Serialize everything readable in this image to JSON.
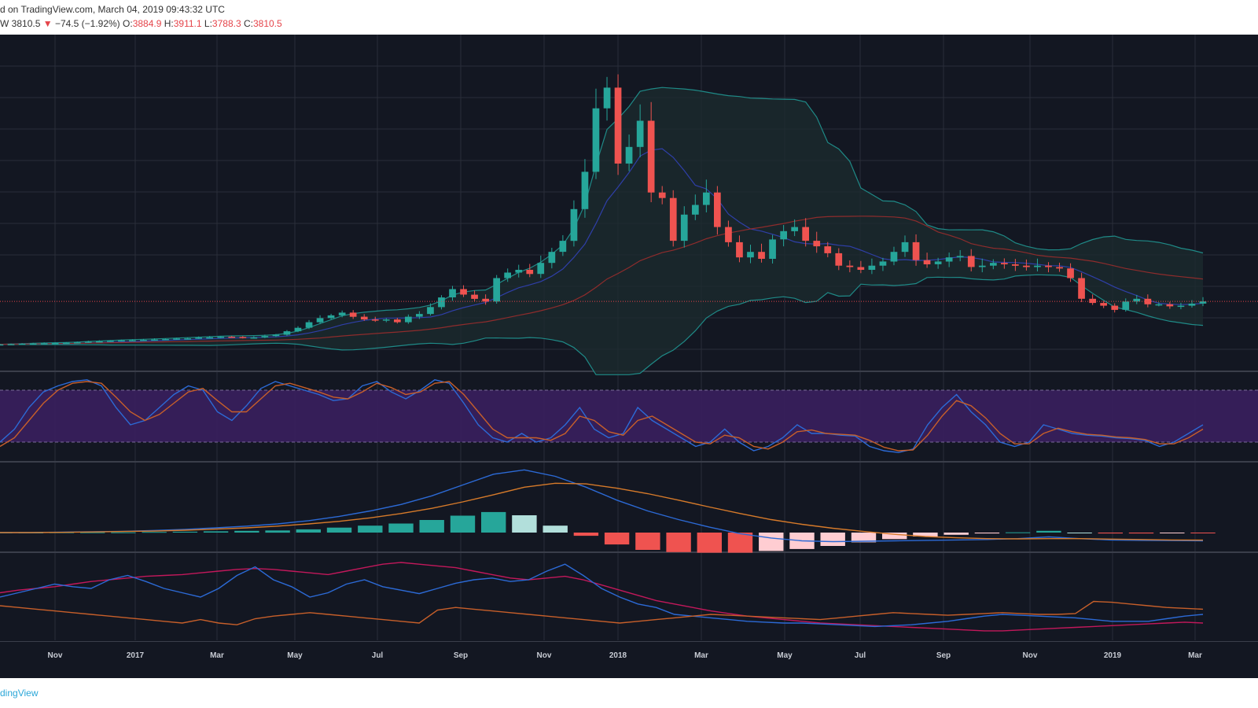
{
  "header": {
    "line1": "d on TradingView.com, March 04, 2019 09:43:32 UTC",
    "symbol_tail": "W",
    "last": "3810.5",
    "down_arrow": "▼",
    "change": "−74.5 (−1.92%)",
    "o_label": "O:",
    "o_value": "3884.9",
    "h_label": "H:",
    "h_value": "3911.1",
    "l_label": "L:",
    "l_value": "3788.3",
    "c_label": "C:",
    "c_value": "3810.5"
  },
  "footer": {
    "brand": "dingView"
  },
  "colors": {
    "background": "#131722",
    "grid": "#2a2e39",
    "up": "#26a69a",
    "down": "#ef5350",
    "bb_band": "#1f8a87",
    "bb_fill": "#1b2a2e",
    "ma_blue": "#2f3fa8",
    "ma_red": "#8e2c2c",
    "stoch_k": "#2c6ad6",
    "stoch_d": "#c75f2a",
    "stoch_band": "#3a1f5e",
    "macd": "#2c6ad6",
    "signal": "#d67a2a",
    "hist_up_strong": "#26a69a",
    "hist_up_weak": "#b2dfdb",
    "hist_dn_strong": "#ef5350",
    "hist_dn_weak": "#ffcdd2",
    "dmi_plus": "#2c6ad6",
    "dmi_minus": "#c2185b",
    "adx": "#c75f2a",
    "price_line": "#e5444a"
  },
  "chart_data": {
    "type": "candlestick",
    "timeframe": "weekly",
    "x_labels": [
      "Nov",
      "2017",
      "Mar",
      "May",
      "Jul",
      "Sep",
      "Nov",
      "2018",
      "Mar",
      "May",
      "Jul",
      "Sep",
      "Nov",
      "2019",
      "Mar"
    ],
    "ylim": [
      0,
      22000
    ],
    "last_price": 3810.5,
    "close": [
      700,
      720,
      740,
      760,
      780,
      800,
      820,
      850,
      900,
      920,
      960,
      990,
      1000,
      1020,
      1050,
      1080,
      1120,
      1130,
      1190,
      1210,
      1250,
      1230,
      1180,
      1200,
      1300,
      1400,
      1650,
      1900,
      2300,
      2600,
      2800,
      3000,
      2700,
      2500,
      2450,
      2500,
      2300,
      2700,
      2900,
      3400,
      4100,
      4700,
      4300,
      4000,
      3800,
      5500,
      5900,
      6100,
      5800,
      6600,
      7400,
      8200,
      10500,
      13200,
      17800,
      19300,
      13800,
      15000,
      16900,
      11700,
      11300,
      8200,
      10100,
      10800,
      11700,
      9200,
      8100,
      7000,
      7400,
      6900,
      8300,
      8900,
      9200,
      8200,
      7800,
      7300,
      6400,
      6300,
      6100,
      6400,
      6700,
      7400,
      8100,
      6800,
      6500,
      6700,
      7000,
      7100,
      6300,
      6400,
      6600,
      6500,
      6400,
      6300,
      6400,
      6300,
      6200,
      5500,
      4000,
      3700,
      3500,
      3200,
      3800,
      4000,
      3600,
      3600,
      3450,
      3500,
      3650,
      3810.5
    ],
    "stoch_k": [
      20,
      35,
      60,
      78,
      85,
      90,
      92,
      85,
      60,
      40,
      45,
      60,
      75,
      85,
      80,
      55,
      45,
      62,
      82,
      90,
      85,
      80,
      75,
      68,
      70,
      85,
      90,
      78,
      70,
      80,
      92,
      88,
      65,
      40,
      25,
      20,
      30,
      20,
      25,
      40,
      60,
      35,
      25,
      30,
      60,
      45,
      35,
      25,
      15,
      20,
      35,
      20,
      10,
      15,
      25,
      40,
      30,
      30,
      28,
      27,
      15,
      10,
      8,
      12,
      40,
      60,
      75,
      55,
      40,
      20,
      15,
      20,
      40,
      35,
      30,
      28,
      27,
      25,
      24,
      22,
      15,
      20,
      30,
      40
    ],
    "stoch_d": [
      15,
      25,
      45,
      65,
      80,
      88,
      90,
      88,
      72,
      55,
      45,
      52,
      65,
      78,
      82,
      68,
      55,
      55,
      70,
      85,
      88,
      83,
      78,
      72,
      70,
      78,
      88,
      83,
      75,
      78,
      88,
      90,
      75,
      55,
      35,
      25,
      25,
      25,
      22,
      30,
      50,
      45,
      32,
      28,
      45,
      50,
      40,
      30,
      20,
      18,
      28,
      25,
      15,
      12,
      20,
      32,
      34,
      30,
      29,
      28,
      22,
      14,
      10,
      11,
      28,
      50,
      68,
      62,
      48,
      30,
      18,
      18,
      30,
      36,
      32,
      29,
      28,
      26,
      25,
      23,
      18,
      18,
      25,
      35
    ],
    "macd": [
      0,
      0,
      2,
      4,
      6,
      10,
      15,
      22,
      30,
      40,
      55,
      75,
      100,
      130,
      170,
      220,
      270,
      290,
      260,
      210,
      150,
      100,
      60,
      25,
      -5,
      -25,
      -38,
      -42,
      -40,
      -38,
      -36,
      -34,
      -32,
      -28,
      -20,
      -28,
      -34,
      -36,
      -37,
      -38
    ],
    "signal": [
      0,
      0,
      1,
      3,
      5,
      7,
      11,
      16,
      22,
      30,
      40,
      52,
      68,
      88,
      112,
      142,
      175,
      210,
      228,
      225,
      205,
      180,
      150,
      118,
      88,
      60,
      38,
      20,
      5,
      -8,
      -18,
      -24,
      -28,
      -29,
      -28,
      -28,
      -30,
      -32,
      -34,
      -35
    ],
    "dmi_plus": [
      50,
      55,
      60,
      65,
      62,
      60,
      70,
      75,
      68,
      60,
      55,
      50,
      60,
      75,
      85,
      70,
      62,
      50,
      55,
      65,
      70,
      62,
      58,
      54,
      60,
      66,
      70,
      72,
      68,
      70,
      80,
      88,
      75,
      60,
      50,
      42,
      38,
      30,
      28,
      26,
      24,
      22,
      21,
      20,
      20,
      19,
      18,
      17,
      16,
      17,
      18,
      20,
      22,
      25,
      28,
      30,
      29,
      28,
      27,
      26,
      24,
      22,
      22,
      22,
      25,
      28,
      30
    ],
    "dmi_minus": [
      55,
      58,
      60,
      62,
      65,
      68,
      70,
      72,
      74,
      75,
      76,
      78,
      80,
      82,
      83,
      82,
      80,
      78,
      76,
      80,
      84,
      88,
      90,
      88,
      86,
      84,
      80,
      76,
      72,
      70,
      72,
      74,
      70,
      64,
      58,
      52,
      46,
      42,
      38,
      34,
      31,
      28,
      26,
      24,
      22,
      20,
      19,
      18,
      17,
      16,
      15,
      14,
      13,
      12,
      11,
      11,
      12,
      13,
      14,
      15,
      16,
      17,
      18,
      19,
      20,
      21,
      20
    ],
    "adx": [
      40,
      38,
      36,
      34,
      32,
      30,
      28,
      26,
      24,
      22,
      20,
      24,
      20,
      18,
      25,
      28,
      30,
      32,
      30,
      28,
      26,
      24,
      22,
      20,
      35,
      38,
      36,
      34,
      32,
      30,
      28,
      26,
      24,
      22,
      20,
      22,
      24,
      26,
      28,
      30,
      29,
      28,
      27,
      26,
      25,
      24,
      26,
      28,
      30,
      32,
      31,
      30,
      29,
      30,
      31,
      32,
      31,
      30,
      30,
      31,
      45,
      44,
      42,
      40,
      38,
      37,
      36
    ]
  }
}
